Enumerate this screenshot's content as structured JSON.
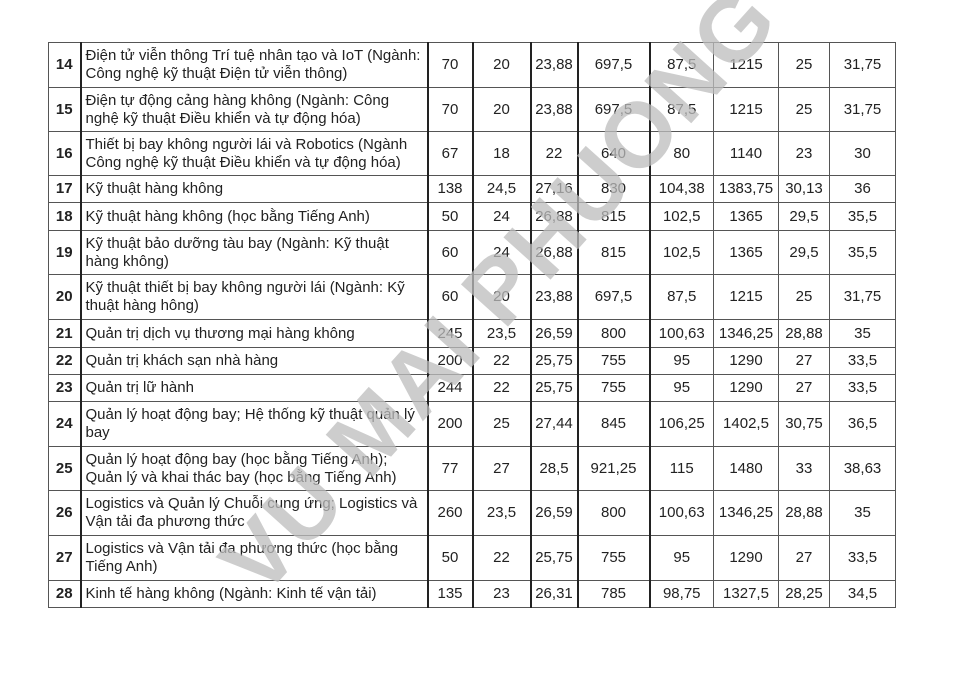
{
  "watermark": "VU MAI PHUONG",
  "rows": [
    {
      "no": "14",
      "name": "Điện tử viễn thông Trí tuệ nhân tạo và IoT (Ngành: Công nghệ kỹ thuật Điện tử viễn thông)",
      "values": [
        "70",
        "20",
        "23,88",
        "697,5",
        "87,5",
        "1215",
        "25",
        "31,75"
      ]
    },
    {
      "no": "15",
      "name": "Điện tự động cảng hàng không (Ngành: Công nghệ kỹ thuật Điều khiển và tự động hóa)",
      "values": [
        "70",
        "20",
        "23,88",
        "697,5",
        "87,5",
        "1215",
        "25",
        "31,75"
      ]
    },
    {
      "no": "16",
      "name": "Thiết bị bay không người lái và Robotics (Ngành Công nghệ kỹ thuật Điều khiển và tự động hóa)",
      "values": [
        "67",
        "18",
        "22",
        "640",
        "80",
        "1140",
        "23",
        "30"
      ]
    },
    {
      "no": "17",
      "name": "Kỹ thuật hàng không",
      "values": [
        "138",
        "24,5",
        "27,16",
        "830",
        "104,38",
        "1383,75",
        "30,13",
        "36"
      ]
    },
    {
      "no": "18",
      "name": "Kỹ thuật hàng không (học bằng Tiếng Anh)",
      "values": [
        "50",
        "24",
        "26,88",
        "815",
        "102,5",
        "1365",
        "29,5",
        "35,5"
      ]
    },
    {
      "no": "19",
      "name": "Kỹ thuật bảo dưỡng tàu bay (Ngành: Kỹ thuật hàng không)",
      "values": [
        "60",
        "24",
        "26,88",
        "815",
        "102,5",
        "1365",
        "29,5",
        "35,5"
      ]
    },
    {
      "no": "20",
      "name": "Kỹ thuật thiết bị bay không người lái (Ngành: Kỹ thuật hàng hông)",
      "values": [
        "60",
        "20",
        "23,88",
        "697,5",
        "87,5",
        "1215",
        "25",
        "31,75"
      ]
    },
    {
      "no": "21",
      "name": "Quản trị dịch vụ thương mại hàng không",
      "values": [
        "245",
        "23,5",
        "26,59",
        "800",
        "100,63",
        "1346,25",
        "28,88",
        "35"
      ]
    },
    {
      "no": "22",
      "name": "Quản trị khách sạn nhà hàng",
      "values": [
        "200",
        "22",
        "25,75",
        "755",
        "95",
        "1290",
        "27",
        "33,5"
      ]
    },
    {
      "no": "23",
      "name": "Quản trị lữ hành",
      "values": [
        "244",
        "22",
        "25,75",
        "755",
        "95",
        "1290",
        "27",
        "33,5"
      ]
    },
    {
      "no": "24",
      "name": "Quản lý hoạt động bay; Hệ thống kỹ thuật quản lý bay",
      "values": [
        "200",
        "25",
        "27,44",
        "845",
        "106,25",
        "1402,5",
        "30,75",
        "36,5"
      ]
    },
    {
      "no": "25",
      "name": "Quản lý hoạt động bay (học bằng Tiếng Anh); Quản lý và khai thác bay (học bằng Tiếng Anh)",
      "values": [
        "77",
        "27",
        "28,5",
        "921,25",
        "115",
        "1480",
        "33",
        "38,63"
      ]
    },
    {
      "no": "26",
      "name": "Logistics và Quản lý Chuỗi cung ứng; Logistics và Vận tải đa phương thức",
      "values": [
        "260",
        "23,5",
        "26,59",
        "800",
        "100,63",
        "1346,25",
        "28,88",
        "35"
      ]
    },
    {
      "no": "27",
      "name": "Logistics và Vận tải đa phương thức (học bằng Tiếng Anh)",
      "values": [
        "50",
        "22",
        "25,75",
        "755",
        "95",
        "1290",
        "27",
        "33,5"
      ]
    },
    {
      "no": "28",
      "name": "Kinh tế hàng không (Ngành: Kinh tế vận tải)",
      "values": [
        "135",
        "23",
        "26,31",
        "785",
        "98,75",
        "1327,5",
        "28,25",
        "34,5"
      ]
    }
  ]
}
